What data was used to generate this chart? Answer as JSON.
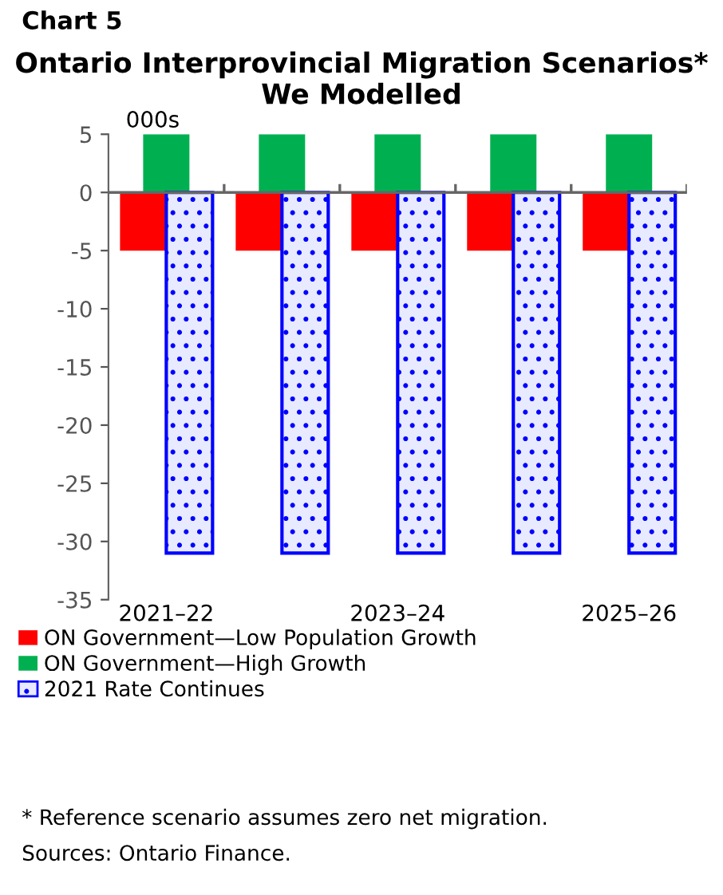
{
  "chart_data": {
    "type": "bar",
    "title": "Ontario Interprovincial Migration Scenarios* We Modelled",
    "categories": [
      "2021–22",
      null,
      "2023–24",
      null,
      "2025–26"
    ],
    "series": [
      {
        "name": "ON Government—Low Population Growth",
        "color": "#ff0000",
        "values": [
          -5,
          -5,
          -5,
          -5,
          -5
        ]
      },
      {
        "name": "ON Government—High Growth",
        "color": "#00b050",
        "values": [
          5,
          5,
          5,
          5,
          5
        ]
      },
      {
        "name": "2021 Rate Continues",
        "color": "#0000ff",
        "values": [
          -31,
          -31,
          -31,
          -31,
          -31
        ]
      }
    ],
    "ylim": [
      -35,
      5
    ],
    "yticks": [
      -35,
      -30,
      -25,
      -20,
      -15,
      -10,
      -5,
      0,
      5
    ],
    "legend": "bottom",
    "annotations": [
      "Chart 5",
      "000s",
      "* Reference scenario assumes zero net migration.",
      "Sources: Ontario Finance."
    ]
  }
}
